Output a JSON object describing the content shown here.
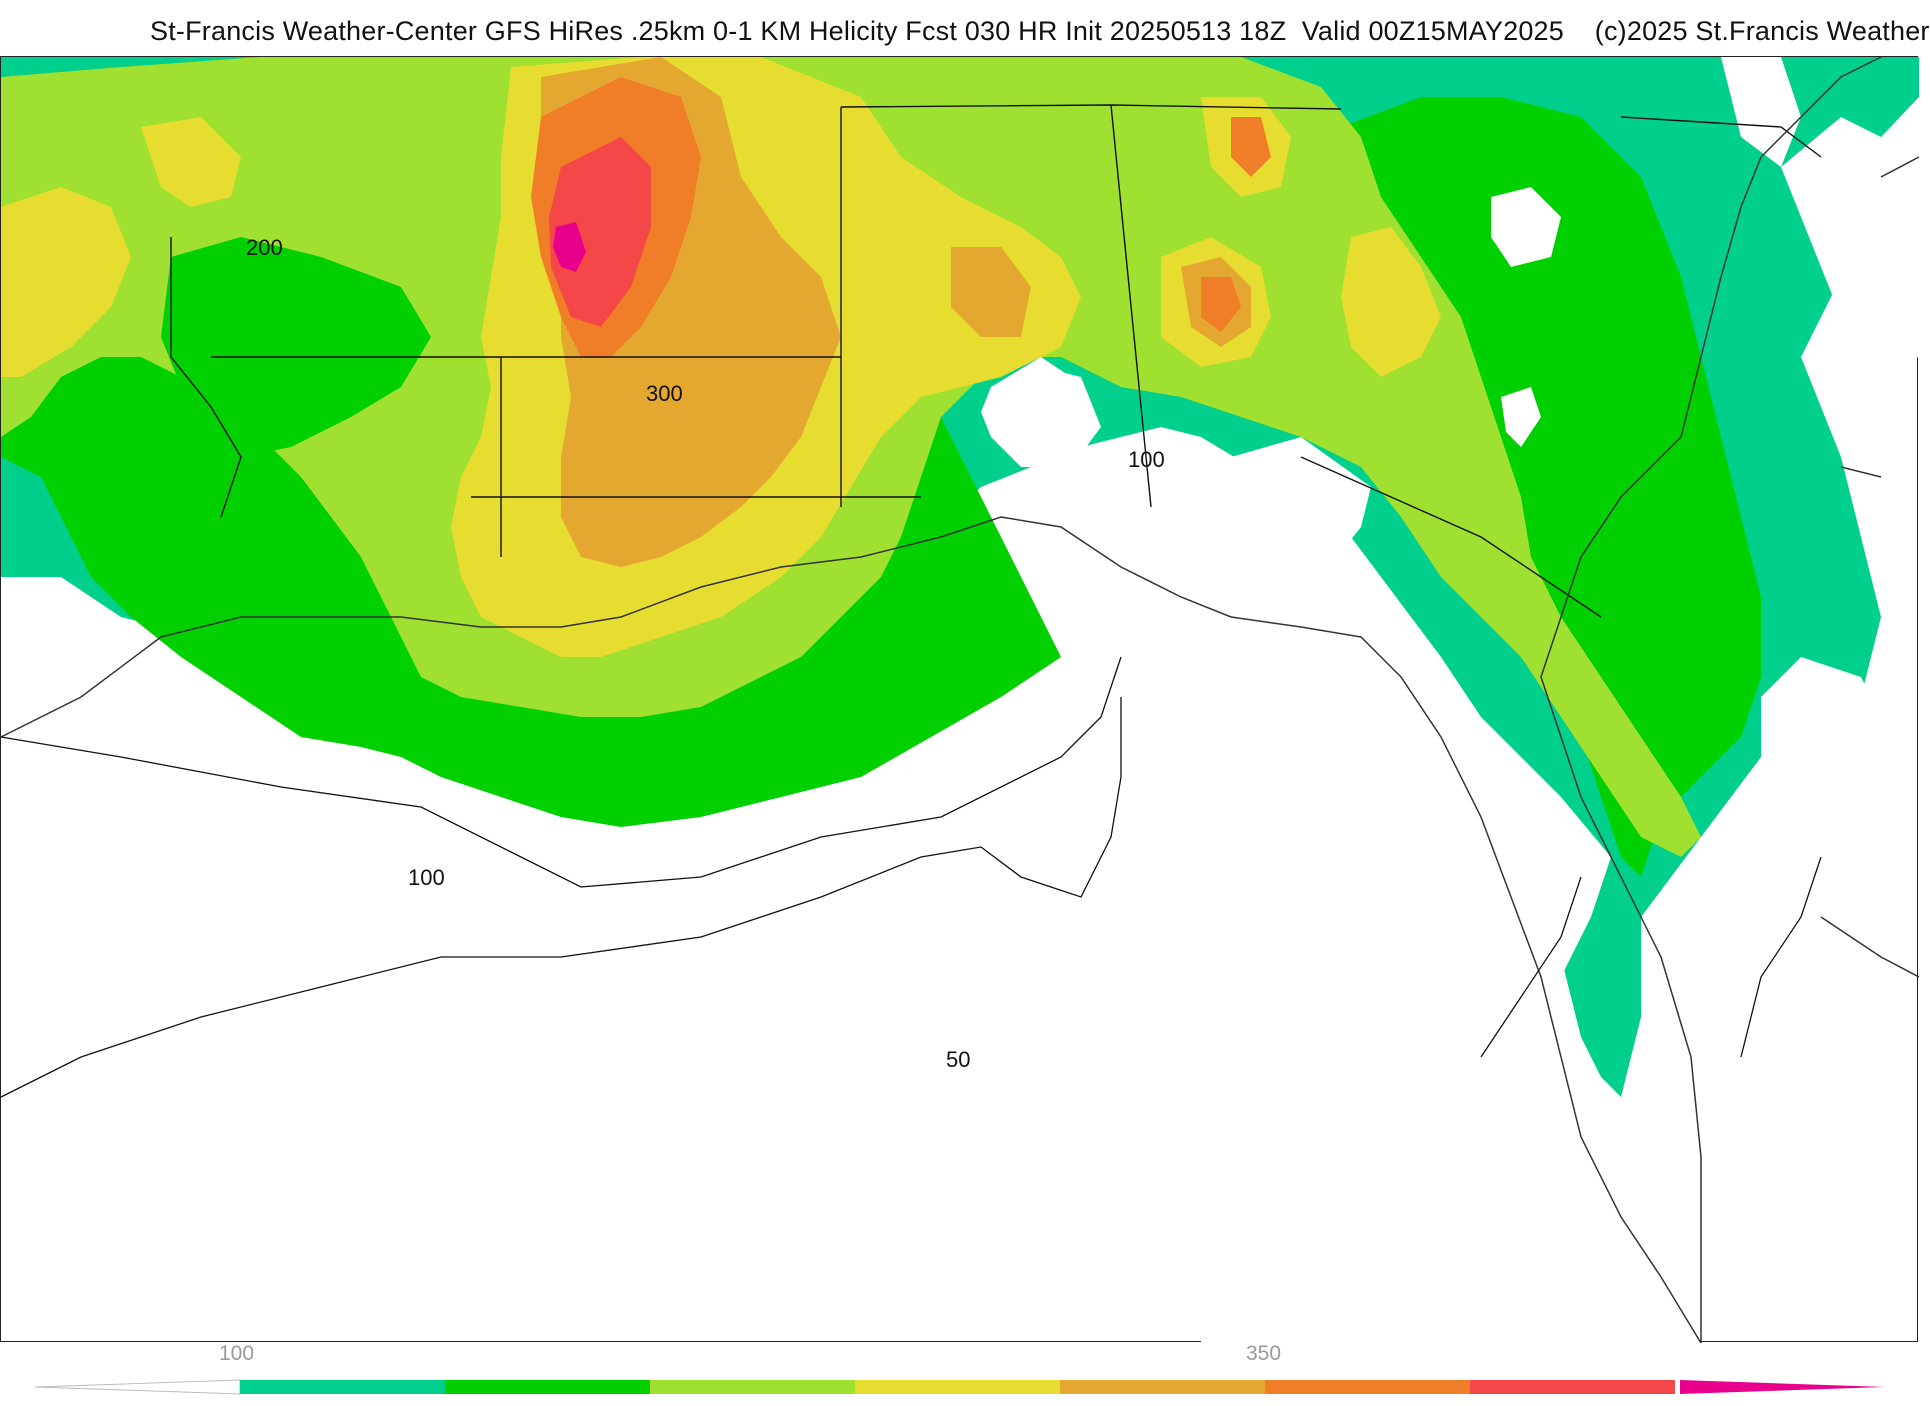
{
  "header": {
    "title": "St-Francis Weather-Center GFS HiRes .25km 0-1 KM Helicity Fcst 030 HR Init 20250513 18Z  Valid 00Z15MAY2025    (c)2025 St.Francis Weather"
  },
  "map": {
    "contour_labels": [
      "200",
      "300",
      "100",
      "100",
      "50"
    ]
  },
  "legend": {
    "tick_labels": [
      "100",
      "350"
    ],
    "colors": [
      "#00d08c",
      "#00d000",
      "#a0e030",
      "#e6dd30",
      "#e4a830",
      "#f07e28",
      "#f44848",
      "#e8008c"
    ]
  }
}
